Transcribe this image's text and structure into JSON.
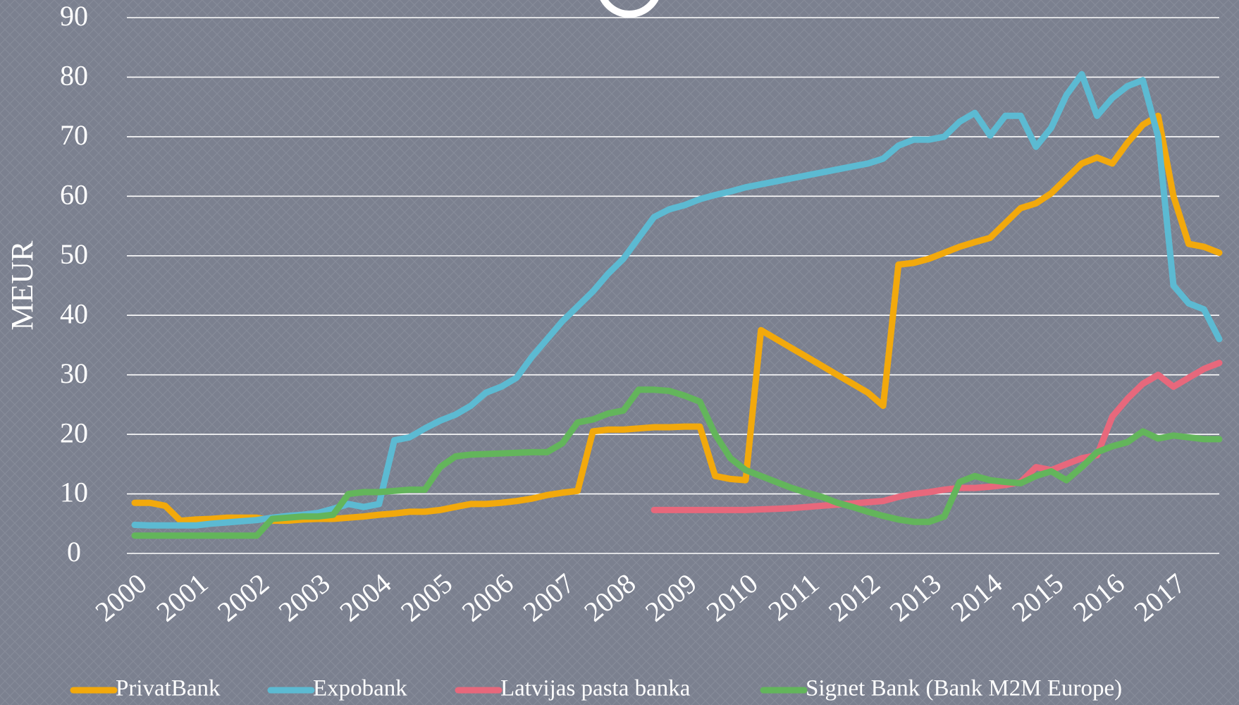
{
  "chart_data": {
    "type": "line",
    "y_label": "MEUR",
    "x": [
      2000,
      2000.25,
      2000.5,
      2000.75,
      2001,
      2001.25,
      2001.5,
      2001.75,
      2002,
      2002.25,
      2002.5,
      2002.75,
      2003,
      2003.25,
      2003.5,
      2003.75,
      2004,
      2004.25,
      2004.5,
      2004.75,
      2005,
      2005.25,
      2005.5,
      2005.75,
      2006,
      2006.25,
      2006.5,
      2006.75,
      2007,
      2007.25,
      2007.5,
      2007.75,
      2008,
      2008.25,
      2008.5,
      2008.75,
      2009,
      2009.25,
      2009.5,
      2009.75,
      2010,
      2010.25,
      2010.5,
      2010.75,
      2011,
      2011.25,
      2011.5,
      2011.75,
      2012,
      2012.25,
      2012.5,
      2012.75,
      2013,
      2013.25,
      2013.5,
      2013.75,
      2014,
      2014.25,
      2014.5,
      2014.75,
      2015,
      2015.25,
      2015.5,
      2015.75,
      2016,
      2016.25,
      2016.5,
      2016.75,
      2017,
      2017.25,
      2017.5,
      2017.75
    ],
    "series": [
      {
        "name": "PrivatBank",
        "color": "#f2a90c",
        "values": [
          8.5,
          8.5,
          8,
          5.5,
          5.7,
          5.8,
          6,
          6,
          6,
          5.5,
          5.5,
          5.7,
          5.8,
          5.8,
          6,
          6.2,
          6.5,
          6.7,
          7,
          7,
          7.3,
          7.8,
          8.3,
          8.3,
          8.5,
          8.8,
          9.2,
          9.8,
          10.2,
          10.5,
          20.5,
          20.8,
          20.8,
          21,
          21.2,
          21.2,
          21.3,
          21.3,
          13,
          12.5,
          12.3,
          37.5,
          36,
          34.5,
          33,
          31.5,
          30,
          28.5,
          27,
          24.8,
          48.5,
          48.8,
          49.5,
          50.5,
          51.5,
          52.3,
          53,
          55.5,
          58,
          58.8,
          60.5,
          63,
          65.5,
          66.5,
          65.5,
          69,
          72,
          73.5,
          60,
          52,
          51.5,
          50.5
        ]
      },
      {
        "name": "Expobank",
        "color": "#5cbad2",
        "values": [
          4.8,
          4.7,
          4.7,
          4.7,
          4.7,
          5,
          5.2,
          5.4,
          5.6,
          6,
          6.3,
          6.5,
          6.8,
          7.5,
          8.3,
          7.8,
          8.3,
          19,
          19.5,
          21,
          22.3,
          23.3,
          24.8,
          27,
          28,
          29.5,
          33,
          36,
          39,
          41.5,
          44,
          47,
          49.5,
          53,
          56.5,
          57.8,
          58.5,
          59.5,
          60.2,
          60.8,
          61.5,
          62,
          62.5,
          63,
          63.5,
          64,
          64.5,
          65,
          65.5,
          66.3,
          68.5,
          69.5,
          69.5,
          70,
          72.5,
          74,
          70.2,
          73.5,
          73.5,
          68.3,
          71.5,
          77,
          80.5,
          73.5,
          76.5,
          78.5,
          79.5,
          70,
          45,
          42,
          41,
          36
        ]
      },
      {
        "name": "Latvijas pasta banka",
        "color": "#e7687c",
        "values": [
          null,
          null,
          null,
          null,
          null,
          null,
          null,
          null,
          null,
          null,
          null,
          null,
          null,
          null,
          null,
          null,
          null,
          null,
          null,
          null,
          null,
          null,
          null,
          null,
          null,
          null,
          null,
          null,
          null,
          null,
          null,
          null,
          null,
          null,
          7.3,
          7.3,
          7.3,
          7.3,
          7.3,
          7.3,
          7.3,
          7.4,
          7.5,
          7.6,
          7.8,
          8,
          8.2,
          8.4,
          8.6,
          8.8,
          9.5,
          10,
          10.3,
          10.7,
          11,
          11,
          11.2,
          11.5,
          12,
          14.5,
          14,
          15,
          16,
          16.5,
          23,
          26,
          28.5,
          30,
          28,
          29.5,
          31,
          32
        ]
      },
      {
        "name": "Signet Bank (Bank M2M Europe)",
        "color": "#63b55b",
        "values": [
          3,
          3,
          3,
          3,
          3,
          3,
          3,
          3,
          3,
          5.8,
          6,
          6.2,
          6.2,
          6.5,
          10,
          10.3,
          10.3,
          10.5,
          10.7,
          10.7,
          14.5,
          16.3,
          16.6,
          16.7,
          16.8,
          16.9,
          17,
          17,
          18.5,
          22,
          22.5,
          23.5,
          24,
          27.5,
          27.5,
          27.3,
          26.5,
          25.5,
          20,
          16,
          14,
          13,
          12,
          11,
          10.2,
          9.5,
          8.5,
          7.8,
          7,
          6.3,
          5.7,
          5.3,
          5.3,
          6.2,
          12,
          13,
          12.3,
          12,
          11.8,
          13,
          13.8,
          12.3,
          14.5,
          17,
          18,
          18.7,
          20.5,
          19.3,
          19.8,
          19.5,
          19.2,
          19.2
        ]
      }
    ],
    "xlim": [
      2000,
      2017.75
    ],
    "xticks": [
      2000,
      2001,
      2002,
      2003,
      2004,
      2005,
      2006,
      2007,
      2008,
      2009,
      2010,
      2011,
      2012,
      2013,
      2014,
      2015,
      2016,
      2017
    ],
    "ylim": [
      0,
      90
    ],
    "yticks": [
      0,
      10,
      20,
      30,
      40,
      50,
      60,
      70,
      80,
      90
    ],
    "grid": true,
    "legend": "bottom"
  }
}
